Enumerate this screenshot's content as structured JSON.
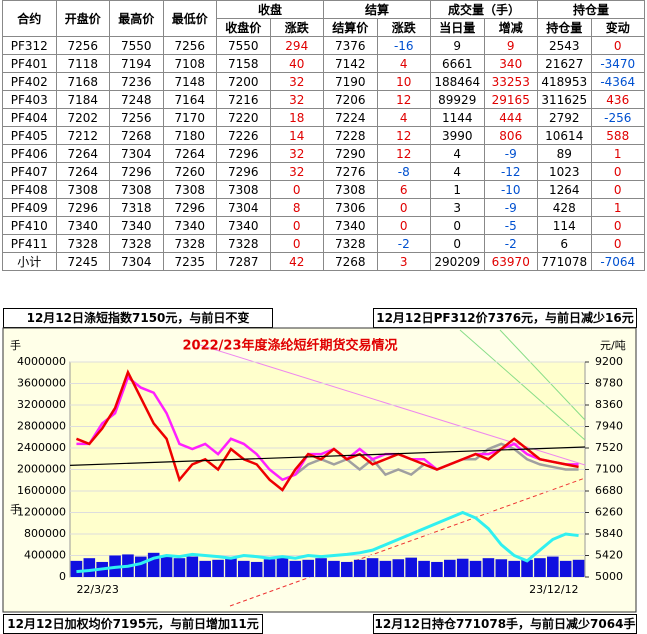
{
  "table": {
    "header_top": [
      "合约",
      "开盘价",
      "最高价",
      "最低价",
      "收盘",
      "结算",
      "成交量（手）",
      "持仓量"
    ],
    "header_sub": [
      "收盘价",
      "涨跌",
      "结算价",
      "涨跌",
      "当日量",
      "增减",
      "持仓量",
      "变动"
    ],
    "rows": [
      [
        "PF312",
        "7256",
        "7550",
        "7256",
        "7550",
        "294",
        "7376",
        "-16",
        "9",
        "9",
        "2543",
        "0"
      ],
      [
        "PF401",
        "7118",
        "7194",
        "7108",
        "7158",
        "40",
        "7142",
        "4",
        "6661",
        "340",
        "21627",
        "-3470"
      ],
      [
        "PF402",
        "7168",
        "7236",
        "7148",
        "7200",
        "32",
        "7190",
        "10",
        "188464",
        "33253",
        "418953",
        "-4364"
      ],
      [
        "PF403",
        "7184",
        "7248",
        "7164",
        "7216",
        "32",
        "7206",
        "12",
        "89929",
        "29165",
        "311625",
        "436"
      ],
      [
        "PF404",
        "7202",
        "7256",
        "7170",
        "7220",
        "18",
        "7224",
        "4",
        "1144",
        "444",
        "2792",
        "-256"
      ],
      [
        "PF405",
        "7212",
        "7268",
        "7180",
        "7226",
        "14",
        "7228",
        "12",
        "3990",
        "806",
        "10614",
        "588"
      ],
      [
        "PF406",
        "7264",
        "7304",
        "7264",
        "7296",
        "32",
        "7290",
        "12",
        "4",
        "-9",
        "89",
        "1"
      ],
      [
        "PF407",
        "7264",
        "7296",
        "7260",
        "7296",
        "32",
        "7276",
        "-8",
        "4",
        "-12",
        "1023",
        "0"
      ],
      [
        "PF408",
        "7308",
        "7308",
        "7308",
        "7308",
        "0",
        "7308",
        "6",
        "1",
        "-10",
        "1264",
        "0"
      ],
      [
        "PF409",
        "7296",
        "7318",
        "7296",
        "7304",
        "8",
        "7306",
        "0",
        "3",
        "-9",
        "428",
        "1"
      ],
      [
        "PF410",
        "7340",
        "7340",
        "7340",
        "7340",
        "0",
        "7340",
        "0",
        "0",
        "-5",
        "114",
        "0"
      ],
      [
        "PF411",
        "7328",
        "7328",
        "7328",
        "7328",
        "0",
        "7328",
        "-2",
        "0",
        "-2",
        "6",
        "0"
      ],
      [
        "小计",
        "7245",
        "7304",
        "7235",
        "7287",
        "42",
        "7268",
        "3",
        "290209",
        "63970",
        "771078",
        "-7064"
      ]
    ]
  },
  "notes": {
    "top_left": "12月12日涤短指数7150元，与前日不变",
    "top_right": "12月12日PF312价7376元，与前日减少16元",
    "bottom_left": "12月12日加权均价7195元，与前日增加11元",
    "bottom_right": "12月12日持仓771078手，与前日减少7064手"
  },
  "chart_data": {
    "type": "combo",
    "title": "2022/23年度涤纶短纤期货交易情况",
    "ylabel": "手",
    "ylabel_lower": "手",
    "y2label": "元/吨",
    "categories": [
      "22/3/23",
      null,
      null,
      null,
      null,
      null,
      null,
      null,
      null,
      null,
      null,
      null,
      null,
      null,
      null,
      null,
      null,
      null,
      null,
      null,
      null,
      null,
      null,
      null,
      null,
      null,
      null,
      null,
      null,
      null,
      null,
      null,
      null,
      null,
      null,
      null,
      null,
      null,
      null,
      "23/12/12"
    ],
    "ylim": [
      0,
      4000000
    ],
    "yticks": [
      0,
      400000,
      800000,
      1200000,
      1600000,
      2000000,
      2400000,
      2800000,
      3200000,
      3600000,
      4000000
    ],
    "y2lim": [
      5000,
      9200
    ],
    "y2ticks": [
      5000,
      5420,
      5840,
      6260,
      6680,
      7100,
      7520,
      7940,
      8360,
      8780,
      9200
    ],
    "grid": true,
    "series": [
      {
        "kind": "bar",
        "color": "#1010e0",
        "values": [
          300000,
          350000,
          280000,
          400000,
          420000,
          380000,
          450000,
          400000,
          350000,
          380000,
          300000,
          320000,
          350000,
          300000,
          280000,
          330000,
          360000,
          300000,
          320000,
          350000,
          300000,
          280000,
          320000,
          350000,
          300000,
          330000,
          360000,
          300000,
          280000,
          320000,
          340000,
          300000,
          350000,
          330000,
          300000,
          320000,
          350000,
          380000,
          300000,
          320000
        ]
      },
      {
        "kind": "line",
        "color": "#30f0f0",
        "values": [
          100000,
          120000,
          150000,
          180000,
          200000,
          250000,
          350000,
          400000,
          380000,
          420000,
          400000,
          380000,
          350000,
          400000,
          380000,
          350000,
          380000,
          350000,
          400000,
          380000,
          400000,
          420000,
          450000,
          500000,
          600000,
          700000,
          800000,
          900000,
          1000000,
          1100000,
          1200000,
          1100000,
          900000,
          600000,
          400000,
          300000,
          500000,
          700000,
          800000,
          771078
        ]
      },
      {
        "kind": "line",
        "axis": "y2",
        "color": "#a0a0a0",
        "values": [
          null,
          null,
          null,
          null,
          null,
          null,
          null,
          null,
          null,
          null,
          null,
          null,
          null,
          null,
          null,
          null,
          null,
          7000,
          7200,
          7300,
          7200,
          7300,
          7100,
          7300,
          7000,
          7100,
          7000,
          7200,
          7100,
          7200,
          7300,
          7300,
          7500,
          7600,
          7500,
          7300,
          7200,
          7150,
          7100,
          7100
        ]
      },
      {
        "kind": "line",
        "axis": "y2",
        "color": "#ff20ff",
        "values": [
          7600,
          7600,
          8000,
          8200,
          8900,
          8700,
          8600,
          8200,
          7600,
          7500,
          7600,
          7400,
          7700,
          7600,
          7400,
          7100,
          6900,
          7000,
          7400,
          7400,
          7500,
          7300,
          7500,
          7300,
          7400,
          7400,
          7300,
          7300,
          7100,
          7200,
          7300,
          7400,
          7400,
          7500,
          7600,
          7400,
          7300,
          7250,
          7200,
          7200
        ]
      },
      {
        "kind": "line",
        "axis": "y2",
        "color": "#ee0000",
        "values": [
          7700,
          7600,
          7900,
          8300,
          9000,
          8500,
          8000,
          7700,
          6900,
          7200,
          7300,
          7100,
          7500,
          7300,
          7200,
          6900,
          6700,
          7100,
          7400,
          7300,
          7500,
          7300,
          7400,
          7200,
          7300,
          7400,
          7300,
          7200,
          7100,
          7200,
          7300,
          7400,
          7300,
          7500,
          7700,
          7500,
          7300,
          7250,
          7200,
          7150
        ]
      }
    ],
    "trend_line": {
      "axis": "y2",
      "color": "#000000",
      "start": 7180,
      "end": 7540
    }
  }
}
